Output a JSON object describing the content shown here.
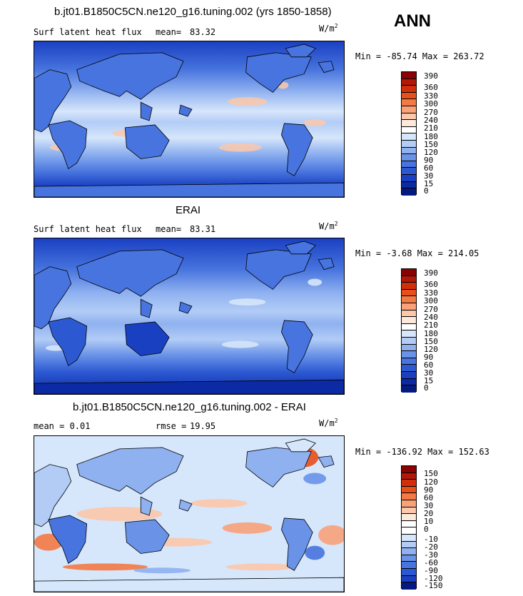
{
  "season": "ANN",
  "panels": [
    {
      "id": "model",
      "title": "b.jt01.B1850C5CN.ne120_g16.tuning.002 (yrs 1850-1858)",
      "left_label": "Surf latent heat flux",
      "stat_label": "mean=",
      "stat_value": "83.32",
      "unit_base": "W/m",
      "unit_exp": "2",
      "minmax": "Min = -85.74 Max = 263.72",
      "colorbar": {
        "colors": [
          "#8b0000",
          "#b21807",
          "#d32e0a",
          "#e8501a",
          "#f47a45",
          "#f9a27a",
          "#fcc8ab",
          "#fde9dc",
          "#ffffff",
          "#d6e6fb",
          "#b2ccf6",
          "#8fb1f0",
          "#6a93e8",
          "#4774de",
          "#2c59d2",
          "#1a40c2",
          "#0b2aa4",
          "#051a80"
        ],
        "labels": [
          "390",
          "360",
          "330",
          "300",
          "270",
          "240",
          "210",
          "180",
          "150",
          "120",
          "90",
          "60",
          "30",
          "15",
          "0"
        ]
      }
    },
    {
      "id": "obs",
      "title": "ERAI",
      "left_label": "Surf latent heat flux",
      "stat_label": "mean=",
      "stat_value": "83.31",
      "unit_base": "W/m",
      "unit_exp": "2",
      "minmax": "Min =  -3.68 Max = 214.05",
      "colorbar": {
        "colors": [
          "#8b0000",
          "#b21807",
          "#d32e0a",
          "#e8501a",
          "#f47a45",
          "#f9a27a",
          "#fcc8ab",
          "#fde9dc",
          "#ffffff",
          "#d6e6fb",
          "#b2ccf6",
          "#8fb1f0",
          "#6a93e8",
          "#4774de",
          "#2c59d2",
          "#1a40c2",
          "#0b2aa4",
          "#051a80"
        ],
        "labels": [
          "390",
          "360",
          "330",
          "300",
          "270",
          "240",
          "210",
          "180",
          "150",
          "120",
          "90",
          "60",
          "30",
          "15",
          "0"
        ]
      }
    },
    {
      "id": "diff",
      "title": "b.jt01.B1850C5CN.ne120_g16.tuning.002 - ERAI",
      "left_label": "mean =     0.01",
      "stat_label": "rmse =",
      "stat_value": "19.95",
      "unit_base": "W/m",
      "unit_exp": "2",
      "minmax": "Min = -136.92 Max = 152.63",
      "colorbar": {
        "colors": [
          "#8b0000",
          "#b21807",
          "#d32e0a",
          "#e8501a",
          "#f47a45",
          "#f9a27a",
          "#fcc8ab",
          "#fde9dc",
          "#ffffff",
          "#ffffff",
          "#d6e6fb",
          "#b2ccf6",
          "#8fb1f0",
          "#6a93e8",
          "#4774de",
          "#2c59d2",
          "#1a40c2",
          "#051a80"
        ],
        "labels": [
          "150",
          "120",
          "90",
          "60",
          "30",
          "20",
          "10",
          "0",
          "-10",
          "-20",
          "-30",
          "-60",
          "-90",
          "-120",
          "-150"
        ]
      }
    }
  ]
}
